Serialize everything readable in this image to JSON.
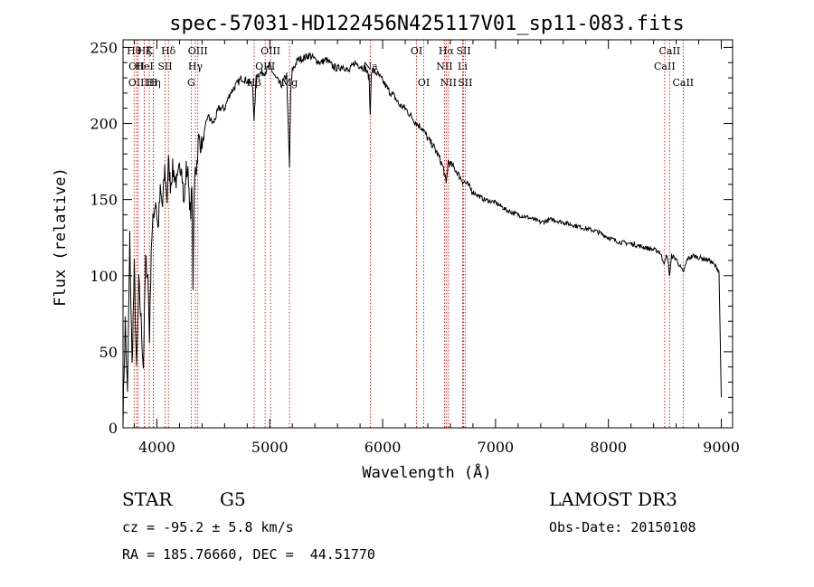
{
  "chart_data": {
    "type": "line",
    "title": "spec-57031-HD122456N425117V01_sp11-083.fits",
    "xlabel": "Wavelength (Å)",
    "ylabel": "Flux (relative)",
    "xlim": [
      3700,
      9100
    ],
    "ylim": [
      0,
      255
    ],
    "x_ticks": [
      4000,
      5000,
      6000,
      7000,
      8000,
      9000
    ],
    "x_tick_labels": [
      "4000",
      "5000",
      "6000",
      "7000",
      "8000",
      "9000"
    ],
    "y_ticks": [
      0,
      50,
      100,
      150,
      200,
      250
    ],
    "y_tick_labels": [
      "0",
      "50",
      "100",
      "150",
      "200",
      "250"
    ],
    "series": [
      {
        "name": "spectrum",
        "x": [
          3700,
          3720,
          3740,
          3760,
          3780,
          3800,
          3820,
          3840,
          3860,
          3880,
          3900,
          3920,
          3935,
          3950,
          3970,
          3990,
          4010,
          4030,
          4050,
          4070,
          4090,
          4102,
          4120,
          4140,
          4160,
          4180,
          4200,
          4220,
          4240,
          4260,
          4280,
          4300,
          4310,
          4320,
          4330,
          4340,
          4350,
          4370,
          4400,
          4450,
          4500,
          4550,
          4600,
          4650,
          4700,
          4750,
          4800,
          4850,
          4861,
          4880,
          4920,
          4960,
          5000,
          5050,
          5100,
          5150,
          5175,
          5185,
          5200,
          5250,
          5300,
          5350,
          5400,
          5450,
          5500,
          5550,
          5600,
          5650,
          5700,
          5750,
          5800,
          5850,
          5880,
          5890,
          5900,
          5950,
          6000,
          6050,
          6100,
          6150,
          6200,
          6250,
          6300,
          6350,
          6400,
          6450,
          6500,
          6540,
          6563,
          6580,
          6620,
          6660,
          6700,
          6750,
          6800,
          6900,
          7000,
          7100,
          7200,
          7300,
          7400,
          7500,
          7600,
          7700,
          7800,
          7900,
          8000,
          8100,
          8200,
          8300,
          8400,
          8450,
          8498,
          8520,
          8542,
          8560,
          8600,
          8662,
          8700,
          8750,
          8800,
          8850,
          8900,
          8950,
          8980,
          8990,
          9000
        ],
        "y": [
          5,
          70,
          20,
          125,
          40,
          105,
          35,
          95,
          70,
          40,
          110,
          100,
          60,
          120,
          140,
          150,
          130,
          155,
          145,
          170,
          150,
          175,
          160,
          170,
          165,
          160,
          170,
          175,
          145,
          170,
          165,
          135,
          165,
          95,
          150,
          175,
          170,
          190,
          185,
          205,
          200,
          210,
          210,
          220,
          225,
          230,
          228,
          225,
          200,
          232,
          233,
          234,
          238,
          230,
          225,
          232,
          170,
          220,
          235,
          242,
          243,
          245,
          242,
          240,
          242,
          238,
          236,
          238,
          234,
          240,
          238,
          236,
          230,
          205,
          235,
          233,
          228,
          222,
          218,
          212,
          210,
          205,
          200,
          197,
          190,
          185,
          178,
          170,
          160,
          175,
          172,
          168,
          163,
          160,
          155,
          150,
          148,
          143,
          140,
          138,
          135,
          137,
          135,
          133,
          131,
          129,
          125,
          122,
          121,
          119,
          117,
          116,
          108,
          114,
          100,
          113,
          111,
          102,
          111,
          113,
          112,
          111,
          110,
          106,
          103,
          60,
          20
        ]
      }
    ],
    "spectral_lines": [
      {
        "wave": 3798,
        "name": "Hθ",
        "row": 0
      },
      {
        "wave": 3820,
        "name": "OII",
        "row": 1
      },
      {
        "wave": 3835,
        "name": "OIII",
        "row": 2
      },
      {
        "wave": 3889,
        "name": "Hζ",
        "row": 0
      },
      {
        "wave": 3889,
        "name": "HeI",
        "row": 1
      },
      {
        "wave": 3933,
        "name": "K",
        "row": 0
      },
      {
        "wave": 3970,
        "name": "Hη",
        "row": 2
      },
      {
        "wave": 3969,
        "name": "H",
        "row": 2
      },
      {
        "wave": 4072,
        "name": "SII",
        "row": 1
      },
      {
        "wave": 4102,
        "name": "Hδ",
        "row": 0
      },
      {
        "wave": 4304,
        "name": "G",
        "row": 2
      },
      {
        "wave": 4341,
        "name": "Hγ",
        "row": 1
      },
      {
        "wave": 4363,
        "name": "OIII",
        "row": 0
      },
      {
        "wave": 4861,
        "name": "Hβ",
        "row": 2
      },
      {
        "wave": 4959,
        "name": "OIII",
        "row": 1
      },
      {
        "wave": 5007,
        "name": "OIII",
        "row": 0
      },
      {
        "wave": 5175,
        "name": "Mg",
        "row": 2
      },
      {
        "wave": 5892,
        "name": "Na",
        "row": 1
      },
      {
        "wave": 6300,
        "name": "OI",
        "row": 0
      },
      {
        "wave": 6364,
        "name": "OI",
        "row": 2
      },
      {
        "wave": 6548,
        "name": "NII",
        "row": 1
      },
      {
        "wave": 6563,
        "name": "Hα",
        "row": 0
      },
      {
        "wave": 6583,
        "name": "NII",
        "row": 2
      },
      {
        "wave": 6708,
        "name": "Li",
        "row": 1
      },
      {
        "wave": 6717,
        "name": "SII",
        "row": 0
      },
      {
        "wave": 6731,
        "name": "SII",
        "row": 2
      },
      {
        "wave": 8498,
        "name": "CaII",
        "row": 1
      },
      {
        "wave": 8542,
        "name": "CaII",
        "row": 0
      },
      {
        "wave": 8662,
        "name": "CaII",
        "row": 2
      }
    ]
  },
  "info": {
    "object_class": "STAR",
    "subclass": "G5",
    "survey": "LAMOST DR3",
    "redshift": "cz = -95.2 ± 5.8 km/s",
    "obs_date": "Obs-Date: 20150108",
    "coords": "RA = 185.76660, DEC =  44.51770"
  }
}
